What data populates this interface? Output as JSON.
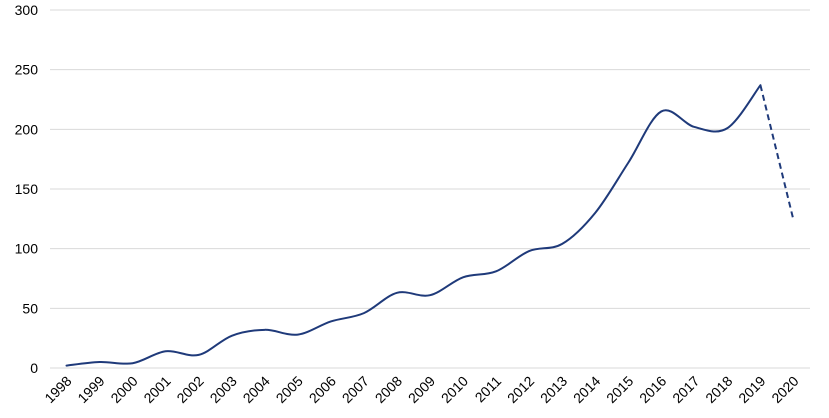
{
  "chart_data": {
    "type": "line",
    "title": "",
    "xlabel": "",
    "ylabel": "",
    "ylim": [
      0,
      300
    ],
    "yticks": [
      0,
      50,
      100,
      150,
      200,
      250,
      300
    ],
    "grid": true,
    "legend": "none",
    "x": [
      "1998",
      "1999",
      "2000",
      "2001",
      "2002",
      "2003",
      "2004",
      "2005",
      "2006",
      "2007",
      "2008",
      "2009",
      "2010",
      "2011",
      "2012",
      "2013",
      "2014",
      "2015",
      "2016",
      "2017",
      "2018",
      "2019",
      "2020"
    ],
    "series": [
      {
        "values": [
          2,
          5,
          4,
          14,
          11,
          27,
          32,
          28,
          39,
          46,
          63,
          61,
          76,
          81,
          98,
          104,
          130,
          172,
          215,
          202,
          201,
          237,
          124
        ],
        "color": "#1f3a7a",
        "line_style": "solid through 2019, dashed from 2019 to 2020"
      }
    ]
  }
}
